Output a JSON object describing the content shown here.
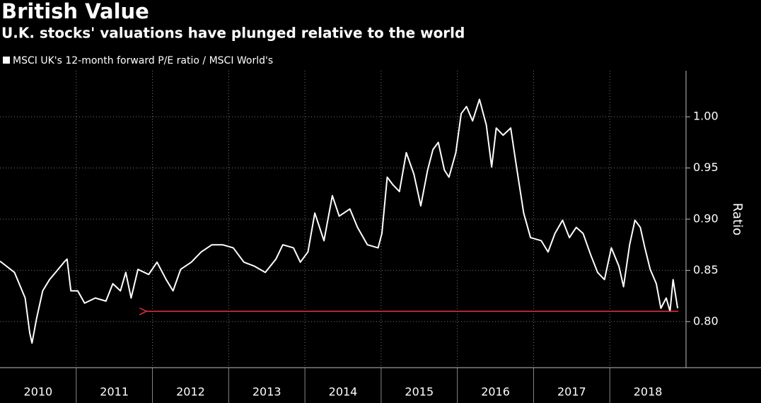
{
  "chart_data": {
    "type": "line",
    "title": "British Value",
    "subtitle": "U.K. stocks' valuations have plunged relative to the world",
    "y_axis_label": "Ratio",
    "x": [
      2010.0,
      2010.19,
      2010.33,
      2010.39,
      2010.42,
      2010.48,
      2010.56,
      2010.65,
      2010.74,
      2010.84,
      2010.88,
      2010.93,
      2011.02,
      2011.11,
      2011.25,
      2011.39,
      2011.48,
      2011.58,
      2011.65,
      2011.72,
      2011.81,
      2011.95,
      2012.06,
      2012.18,
      2012.27,
      2012.37,
      2012.51,
      2012.64,
      2012.78,
      2012.92,
      2013.06,
      2013.2,
      2013.34,
      2013.48,
      2013.62,
      2013.71,
      2013.85,
      2013.94,
      2014.04,
      2014.13,
      2014.25,
      2014.36,
      2014.45,
      2014.59,
      2014.69,
      2014.82,
      2014.96,
      2015.01,
      2015.08,
      2015.15,
      2015.24,
      2015.33,
      2015.43,
      2015.52,
      2015.61,
      2015.68,
      2015.75,
      2015.83,
      2015.89,
      2015.98,
      2016.05,
      2016.12,
      2016.2,
      2016.29,
      2016.38,
      2016.45,
      2016.51,
      2016.6,
      2016.7,
      2016.77,
      2016.87,
      2016.96,
      2017.1,
      2017.19,
      2017.28,
      2017.38,
      2017.47,
      2017.56,
      2017.65,
      2017.75,
      2017.84,
      2017.93,
      2018.02,
      2018.12,
      2018.18,
      2018.26,
      2018.33,
      2018.4,
      2018.46,
      2018.53,
      2018.61,
      2018.67,
      2018.74,
      2018.79,
      2018.83,
      2018.89
    ],
    "series": [
      {
        "name": "MSCI UK's 12-month forward P/E ratio / MSCI World's",
        "color": "#ffffff",
        "values": [
          0.859,
          0.848,
          0.823,
          0.789,
          0.779,
          0.803,
          0.83,
          0.841,
          0.849,
          0.858,
          0.861,
          0.83,
          0.83,
          0.818,
          0.823,
          0.82,
          0.837,
          0.83,
          0.848,
          0.823,
          0.851,
          0.846,
          0.858,
          0.841,
          0.83,
          0.851,
          0.858,
          0.868,
          0.875,
          0.875,
          0.872,
          0.858,
          0.854,
          0.848,
          0.861,
          0.875,
          0.872,
          0.858,
          0.868,
          0.906,
          0.879,
          0.923,
          0.903,
          0.91,
          0.892,
          0.875,
          0.872,
          0.886,
          0.941,
          0.934,
          0.927,
          0.965,
          0.944,
          0.913,
          0.948,
          0.968,
          0.975,
          0.948,
          0.941,
          0.965,
          1.003,
          1.01,
          0.996,
          1.017,
          0.992,
          0.951,
          0.989,
          0.982,
          0.989,
          0.954,
          0.906,
          0.882,
          0.879,
          0.868,
          0.886,
          0.899,
          0.882,
          0.892,
          0.886,
          0.865,
          0.848,
          0.841,
          0.872,
          0.854,
          0.834,
          0.875,
          0.899,
          0.892,
          0.872,
          0.851,
          0.837,
          0.813,
          0.823,
          0.81,
          0.841,
          0.813
        ]
      }
    ],
    "xlim": [
      2010,
      2019
    ],
    "year_labels": [
      2010,
      2011,
      2012,
      2013,
      2014,
      2015,
      2016,
      2017,
      2018
    ],
    "ylim": [
      0.755,
      1.045
    ],
    "yticks": [
      {
        "value": 0.8,
        "label": "0.80"
      },
      {
        "value": 0.85,
        "label": "0.85"
      },
      {
        "value": 0.9,
        "label": "0.90"
      },
      {
        "value": 0.95,
        "label": "0.95"
      },
      {
        "value": 1.0,
        "label": "1.00"
      }
    ],
    "grid": true,
    "reference_line": {
      "value": 0.81,
      "from": 2011.92,
      "to": 2018.9,
      "color": "#e0303d"
    }
  }
}
